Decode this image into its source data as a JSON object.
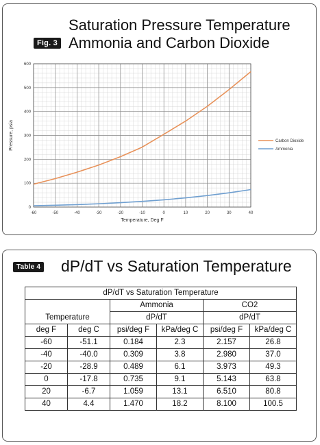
{
  "figure": {
    "badge": "Fig. 3",
    "title_line1": "Saturation Pressure Temperature",
    "title_line2": "Ammonia and Carbon Dioxide"
  },
  "chart_data": {
    "type": "line",
    "xlabel": "Temperature, Deg F",
    "ylabel": "Pressure, psia",
    "xlim": [
      -60,
      40
    ],
    "ylim": [
      0,
      600
    ],
    "x_ticks": [
      -60,
      -50,
      -40,
      -30,
      -20,
      -10,
      0,
      10,
      20,
      30,
      40
    ],
    "y_ticks": [
      0,
      100,
      200,
      300,
      400,
      500,
      600
    ],
    "grid": true,
    "legend_position": "right",
    "series": [
      {
        "name": "Carbon Dioxide",
        "color": "#e8925a",
        "x": [
          -60,
          -50,
          -40,
          -30,
          -20,
          -10,
          0,
          10,
          20,
          30,
          40
        ],
        "y": [
          96,
          119,
          146,
          176,
          211,
          251,
          305,
          360,
          422,
          492,
          567
        ]
      },
      {
        "name": "Ammonia",
        "color": "#6f9fd0",
        "x": [
          -60,
          -50,
          -40,
          -30,
          -20,
          -10,
          0,
          10,
          20,
          30,
          40
        ],
        "y": [
          5.5,
          7.7,
          10.4,
          13.9,
          18.3,
          23.7,
          30.4,
          38.5,
          48.2,
          59.7,
          73.3
        ]
      }
    ]
  },
  "table_section": {
    "badge": "Table 4",
    "title": "dP/dT vs Saturation Temperature",
    "table_title": "dP/dT vs Saturation Temperature",
    "group_ammonia": "Ammonia",
    "group_co2": "CO2",
    "sub_ammonia": "dP/dT",
    "sub_co2": "dP/dT",
    "temperature_header": "Temperature",
    "columns": [
      "deg F",
      "deg C",
      "psi/deg F",
      "kPa/deg C",
      "psi/deg F",
      "kPa/deg C"
    ],
    "rows": [
      [
        "-60",
        "-51.1",
        "0.184",
        "2.3",
        "2.157",
        "26.8"
      ],
      [
        "-40",
        "-40.0",
        "0.309",
        "3.8",
        "2.980",
        "37.0"
      ],
      [
        "-20",
        "-28.9",
        "0.489",
        "6.1",
        "3.973",
        "49.3"
      ],
      [
        "0",
        "-17.8",
        "0.735",
        "9.1",
        "5.143",
        "63.8"
      ],
      [
        "20",
        "-6.7",
        "1.059",
        "13.1",
        "6.510",
        "80.8"
      ],
      [
        "40",
        "4.4",
        "1.470",
        "18.2",
        "8.100",
        "100.5"
      ]
    ]
  }
}
